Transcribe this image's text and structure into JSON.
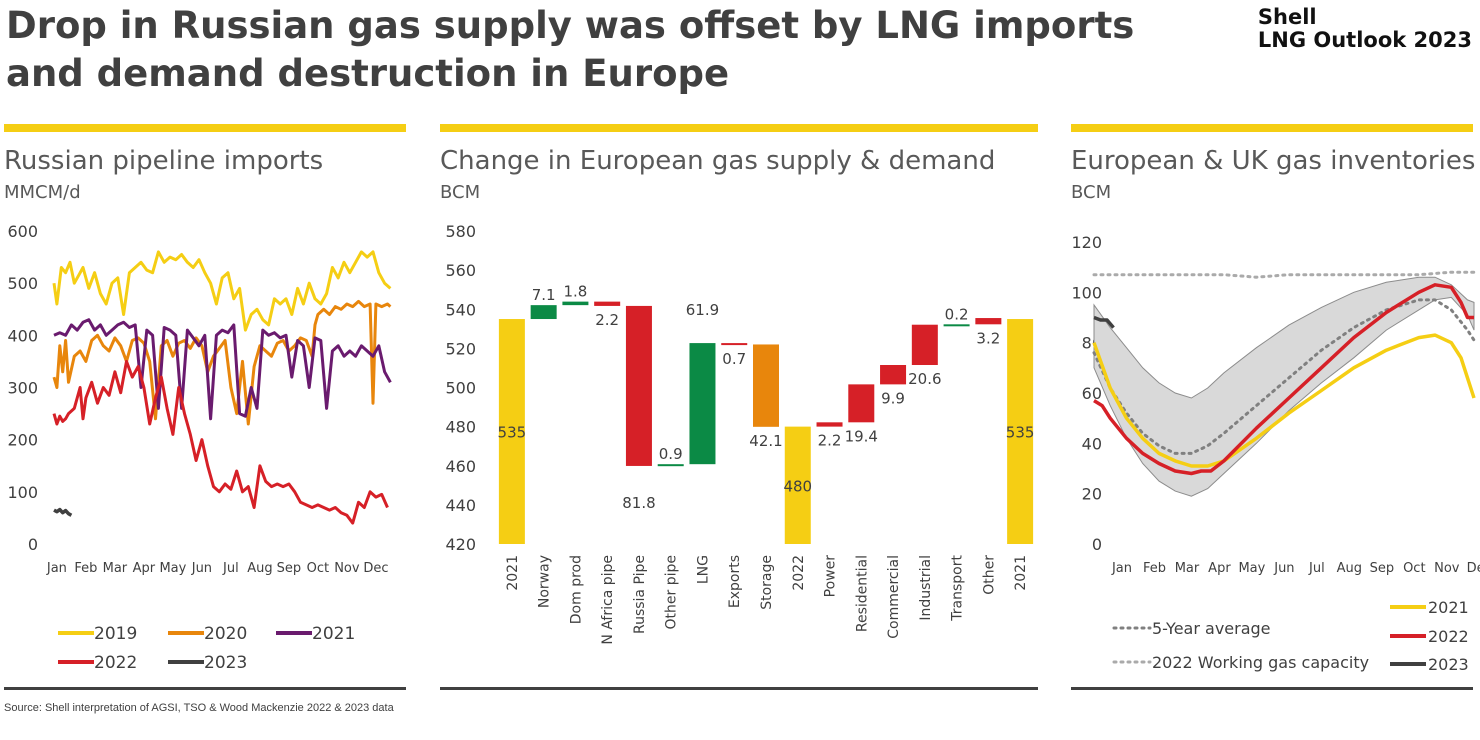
{
  "header": {
    "title": "Drop in Russian gas supply was offset by LNG imports and demand destruction in Europe",
    "brand_line1": "Shell",
    "brand_line2": "LNG Outlook 2023"
  },
  "footer": {
    "source": "Source: Shell interpretation of AGSI, TSO & Wood Mackenzie 2022 & 2023 data"
  },
  "colors": {
    "accent_yellow": "#f5ce14",
    "y2019": "#f5ce14",
    "y2020": "#e8860c",
    "y2021": "#6a1b6e",
    "y2022": "#d62027",
    "y2023": "#404040",
    "green": "#0b8a45",
    "orange": "#e8860c",
    "red": "#d62027",
    "band": "#d9d9d9",
    "dotted": "#808080",
    "dotted_light": "#aaaaaa"
  },
  "panels": {
    "left": {
      "title": "Russian pipeline imports",
      "unit": "MMCM/d"
    },
    "middle": {
      "title": "Change in European gas supply & demand",
      "unit": "BCM"
    },
    "right": {
      "title": "European & UK gas inventories",
      "unit": "BCM"
    }
  },
  "chart_data": [
    {
      "type": "line",
      "title": "Russian pipeline imports",
      "ylabel": "MMCM/d",
      "ylim": [
        0,
        600
      ],
      "yticks": [
        0,
        100,
        200,
        300,
        400,
        500,
        600
      ],
      "x_labels": [
        "Jan",
        "Feb",
        "Mar",
        "Apr",
        "May",
        "Jun",
        "Jul",
        "Aug",
        "Sep",
        "Oct",
        "Nov",
        "Dec"
      ],
      "grid": false,
      "legend_position": "bottom",
      "legend": [
        "2019",
        "2020",
        "2021",
        "2022",
        "2023"
      ],
      "series": [
        {
          "name": "2019",
          "color_key": "y2019",
          "x": [
            0,
            0.1,
            0.25,
            0.4,
            0.55,
            0.7,
            0.85,
            1.0,
            1.2,
            1.4,
            1.6,
            1.8,
            2.0,
            2.2,
            2.4,
            2.6,
            2.8,
            3.0,
            3.2,
            3.4,
            3.6,
            3.8,
            4.0,
            4.2,
            4.4,
            4.6,
            4.8,
            5.0,
            5.2,
            5.4,
            5.6,
            5.8,
            6.0,
            6.2,
            6.4,
            6.6,
            6.8,
            7.0,
            7.2,
            7.4,
            7.6,
            7.8,
            8.0,
            8.2,
            8.4,
            8.6,
            8.8,
            9.0,
            9.2,
            9.4,
            9.6,
            9.8,
            10.0,
            10.2,
            10.4,
            10.6,
            10.8,
            11.0,
            11.2,
            11.4,
            11.6
          ],
          "y": [
            500,
            460,
            530,
            520,
            540,
            500,
            515,
            530,
            490,
            520,
            480,
            460,
            500,
            510,
            440,
            520,
            530,
            540,
            525,
            520,
            560,
            540,
            550,
            545,
            555,
            540,
            530,
            545,
            520,
            500,
            460,
            510,
            520,
            470,
            490,
            410,
            440,
            450,
            430,
            420,
            470,
            460,
            470,
            440,
            490,
            460,
            500,
            470,
            460,
            480,
            530,
            510,
            540,
            520,
            540,
            560,
            550,
            560,
            520,
            500,
            490
          ]
        },
        {
          "name": "2020",
          "color_key": "y2020",
          "x": [
            0,
            0.1,
            0.2,
            0.3,
            0.4,
            0.5,
            0.7,
            0.9,
            1.1,
            1.3,
            1.5,
            1.7,
            1.9,
            2.1,
            2.3,
            2.5,
            2.7,
            2.9,
            3.1,
            3.3,
            3.5,
            3.7,
            3.9,
            4.1,
            4.3,
            4.5,
            4.7,
            4.9,
            5.1,
            5.3,
            5.5,
            5.7,
            5.9,
            6.1,
            6.3,
            6.5,
            6.7,
            6.9,
            7.1,
            7.3,
            7.5,
            7.7,
            7.9,
            8.1,
            8.3,
            8.5,
            8.7,
            8.9,
            9.0,
            9.1,
            9.3,
            9.5,
            9.7,
            9.9,
            10.1,
            10.3,
            10.5,
            10.7,
            10.9,
            11.0,
            11.1,
            11.3,
            11.5,
            11.6
          ],
          "y": [
            320,
            300,
            380,
            330,
            390,
            310,
            360,
            370,
            350,
            390,
            400,
            380,
            370,
            395,
            380,
            350,
            390,
            395,
            385,
            350,
            240,
            380,
            390,
            360,
            385,
            390,
            375,
            395,
            380,
            330,
            360,
            375,
            390,
            300,
            250,
            350,
            230,
            340,
            380,
            370,
            360,
            385,
            390,
            370,
            380,
            395,
            390,
            360,
            420,
            440,
            450,
            440,
            455,
            450,
            460,
            455,
            465,
            455,
            460,
            270,
            460,
            455,
            460,
            455
          ]
        },
        {
          "name": "2021",
          "color_key": "y2021",
          "x": [
            0,
            0.2,
            0.4,
            0.6,
            0.8,
            1.0,
            1.2,
            1.4,
            1.6,
            1.8,
            2.0,
            2.2,
            2.4,
            2.6,
            2.8,
            3.0,
            3.2,
            3.4,
            3.6,
            3.8,
            4.0,
            4.2,
            4.4,
            4.6,
            4.8,
            5.0,
            5.2,
            5.4,
            5.6,
            5.8,
            6.0,
            6.2,
            6.4,
            6.6,
            6.8,
            7.0,
            7.2,
            7.4,
            7.6,
            7.8,
            8.0,
            8.2,
            8.4,
            8.6,
            8.8,
            9.0,
            9.2,
            9.4,
            9.6,
            9.8,
            10.0,
            10.2,
            10.4,
            10.6,
            10.8,
            11.0,
            11.2,
            11.4,
            11.6
          ],
          "y": [
            400,
            405,
            400,
            420,
            410,
            425,
            430,
            410,
            420,
            400,
            410,
            420,
            425,
            415,
            420,
            300,
            410,
            400,
            260,
            415,
            410,
            400,
            260,
            410,
            395,
            380,
            400,
            240,
            400,
            410,
            405,
            420,
            250,
            245,
            300,
            260,
            410,
            400,
            405,
            395,
            400,
            320,
            390,
            380,
            300,
            395,
            390,
            260,
            370,
            380,
            360,
            370,
            360,
            380,
            370,
            360,
            380,
            330,
            310
          ]
        },
        {
          "name": "2022",
          "color_key": "y2022",
          "x": [
            0,
            0.1,
            0.2,
            0.3,
            0.4,
            0.5,
            0.7,
            0.9,
            1.0,
            1.1,
            1.3,
            1.5,
            1.7,
            1.9,
            2.1,
            2.3,
            2.5,
            2.7,
            2.9,
            3.1,
            3.3,
            3.5,
            3.7,
            3.9,
            4.1,
            4.3,
            4.5,
            4.7,
            4.9,
            5.1,
            5.3,
            5.5,
            5.7,
            5.9,
            6.1,
            6.3,
            6.5,
            6.7,
            6.9,
            7.1,
            7.3,
            7.5,
            7.7,
            7.9,
            8.1,
            8.3,
            8.5,
            8.7,
            8.9,
            9.1,
            9.3,
            9.5,
            9.7,
            9.9,
            10.1,
            10.3,
            10.5,
            10.7,
            10.9,
            11.1,
            11.3,
            11.5
          ],
          "y": [
            250,
            230,
            245,
            235,
            240,
            250,
            260,
            300,
            240,
            280,
            310,
            270,
            300,
            285,
            330,
            290,
            350,
            320,
            340,
            300,
            230,
            280,
            320,
            260,
            210,
            300,
            250,
            210,
            160,
            200,
            150,
            110,
            100,
            115,
            105,
            140,
            100,
            110,
            70,
            150,
            120,
            110,
            115,
            110,
            115,
            100,
            80,
            75,
            70,
            75,
            70,
            65,
            70,
            60,
            55,
            40,
            80,
            70,
            100,
            90,
            95,
            70
          ]
        },
        {
          "name": "2023",
          "color_key": "y2023",
          "x": [
            0,
            0.1,
            0.2,
            0.3,
            0.4,
            0.5,
            0.6
          ],
          "y": [
            65,
            62,
            66,
            60,
            64,
            58,
            55
          ]
        }
      ]
    },
    {
      "type": "bar",
      "subtype": "waterfall",
      "title": "Change in European gas supply & demand",
      "ylabel": "BCM",
      "ylim": [
        420,
        580
      ],
      "yticks": [
        420,
        440,
        460,
        480,
        500,
        520,
        540,
        560,
        580
      ],
      "categories": [
        "2021",
        "Norway",
        "Dom prod",
        "N Africa pipe",
        "Russia Pipe",
        "Other pipe",
        "LNG",
        "Exports",
        "Storage",
        "2022",
        "Power",
        "Residential",
        "Commercial",
        "Industrial",
        "Transport",
        "Other",
        "2021"
      ],
      "bars": [
        {
          "label": "2021",
          "low": 420,
          "high": 535,
          "value": "535",
          "color_key": "y2019",
          "label_pos": "inside"
        },
        {
          "label": "Norway",
          "low": 535,
          "high": 542.1,
          "value": "7.1",
          "color_key": "green",
          "label_pos": "above"
        },
        {
          "label": "Dom prod",
          "low": 542.1,
          "high": 543.9,
          "value": "1.8",
          "color_key": "green",
          "label_pos": "above"
        },
        {
          "label": "N Africa pipe",
          "low": 541.7,
          "high": 543.9,
          "value": "2.2",
          "color_key": "red",
          "label_pos": "below"
        },
        {
          "label": "Russia Pipe",
          "low": 459.9,
          "high": 541.7,
          "value": "81.8",
          "color_key": "red",
          "label_pos": "below"
        },
        {
          "label": "Other pipe",
          "low": 459.9,
          "high": 460.8,
          "value": "0.9",
          "color_key": "green",
          "label_pos": "above"
        },
        {
          "label": "LNG",
          "low": 460.8,
          "high": 522.7,
          "value": "61.9",
          "color_key": "green",
          "label_pos": "above"
        },
        {
          "label": "Exports",
          "low": 522.0,
          "high": 522.7,
          "value": "0.7",
          "color_key": "red",
          "label_pos": "below"
        },
        {
          "label": "Storage",
          "low": 479.9,
          "high": 522.0,
          "value": "42.1",
          "color_key": "orange",
          "label_pos": "below"
        },
        {
          "label": "2022",
          "low": 420,
          "high": 480,
          "value": "480",
          "color_key": "y2019",
          "label_pos": "inside"
        },
        {
          "label": "Power",
          "low": 480,
          "high": 482.2,
          "value": "2.2",
          "color_key": "red",
          "label_pos": "below"
        },
        {
          "label": "Residential",
          "low": 482.2,
          "high": 501.6,
          "value": "19.4",
          "color_key": "red",
          "label_pos": "below"
        },
        {
          "label": "Commercial",
          "low": 501.6,
          "high": 511.5,
          "value": "9.9",
          "color_key": "red",
          "label_pos": "below"
        },
        {
          "label": "Industrial",
          "low": 511.5,
          "high": 532.1,
          "value": "20.6",
          "color_key": "red",
          "label_pos": "below"
        },
        {
          "label": "Transport",
          "low": 532.1,
          "high": 532.3,
          "value": "0.2",
          "color_key": "green",
          "label_pos": "above"
        },
        {
          "label": "Other",
          "low": 532.3,
          "high": 535.5,
          "value": "3.2",
          "color_key": "red",
          "label_pos": "below"
        },
        {
          "label": "2021",
          "low": 420,
          "high": 535,
          "value": "535",
          "color_key": "y2019",
          "label_pos": "inside"
        }
      ]
    },
    {
      "type": "line",
      "title": "European & UK gas inventories",
      "ylabel": "BCM",
      "ylim": [
        0,
        120
      ],
      "yticks": [
        0,
        20,
        40,
        60,
        80,
        100,
        120
      ],
      "x_labels": [
        "Jan",
        "Feb",
        "Mar",
        "Apr",
        "May",
        "Jun",
        "Jul",
        "Aug",
        "Sep",
        "Oct",
        "Nov",
        "Dec"
      ],
      "grid": false,
      "legend_position": "bottom",
      "legend": [
        "5-Year average",
        "2022 Working gas capacity",
        "2021",
        "2022",
        "2023"
      ],
      "band": {
        "x": [
          0,
          0.5,
          1,
          1.5,
          2,
          2.5,
          3,
          3.5,
          4,
          5,
          6,
          7,
          8,
          9,
          10,
          10.5,
          11,
          11.5,
          11.7
        ],
        "low": [
          70,
          55,
          42,
          32,
          25,
          21,
          19,
          22,
          28,
          40,
          53,
          64,
          74,
          85,
          93,
          97,
          98,
          91,
          85
        ],
        "high": [
          95,
          86,
          78,
          70,
          64,
          60,
          58,
          62,
          68,
          78,
          87,
          94,
          100,
          104,
          106,
          106,
          103,
          97,
          96
        ]
      },
      "series": [
        {
          "name": "5-Year average",
          "style": "dotted",
          "color_key": "dotted",
          "x": [
            0,
            0.5,
            1,
            1.5,
            2,
            2.5,
            3,
            3.5,
            4,
            5,
            6,
            7,
            8,
            9,
            10,
            10.5,
            11,
            11.5,
            11.7
          ],
          "y": [
            76,
            62,
            52,
            44,
            39,
            36,
            36,
            39,
            44,
            55,
            66,
            77,
            86,
            93,
            97,
            97,
            93,
            85,
            81
          ]
        },
        {
          "name": "2022 Working gas capacity",
          "style": "dotted",
          "color_key": "dotted_light",
          "x": [
            0,
            1,
            2,
            3,
            4,
            5,
            6,
            7,
            8,
            9,
            10,
            11,
            11.7
          ],
          "y": [
            107,
            107,
            107,
            107,
            107,
            106,
            107,
            107,
            107,
            107,
            107,
            108,
            108
          ]
        },
        {
          "name": "2021",
          "color_key": "y2019",
          "x": [
            0,
            0.5,
            1,
            1.5,
            2,
            2.5,
            3,
            3.5,
            4,
            5,
            6,
            7,
            8,
            9,
            10,
            10.5,
            11,
            11.3,
            11.5,
            11.7
          ],
          "y": [
            80,
            62,
            50,
            42,
            36,
            33,
            31,
            31,
            33,
            42,
            52,
            61,
            70,
            77,
            82,
            83,
            80,
            74,
            66,
            58
          ]
        },
        {
          "name": "2022",
          "color_key": "y2022",
          "x": [
            0,
            0.25,
            0.5,
            1,
            1.5,
            2,
            2.5,
            3,
            3.3,
            3.6,
            4,
            5,
            6,
            7,
            8,
            9,
            10,
            10.5,
            11,
            11.3,
            11.5,
            11.7
          ],
          "y": [
            57,
            55,
            50,
            42,
            36,
            32,
            29,
            28,
            29,
            29,
            33,
            46,
            58,
            70,
            82,
            92,
            100,
            103,
            102,
            96,
            90,
            90
          ]
        },
        {
          "name": "2023",
          "color_key": "y2023",
          "x": [
            0,
            0.2,
            0.4,
            0.6
          ],
          "y": [
            90,
            89,
            89,
            86
          ]
        }
      ]
    }
  ]
}
